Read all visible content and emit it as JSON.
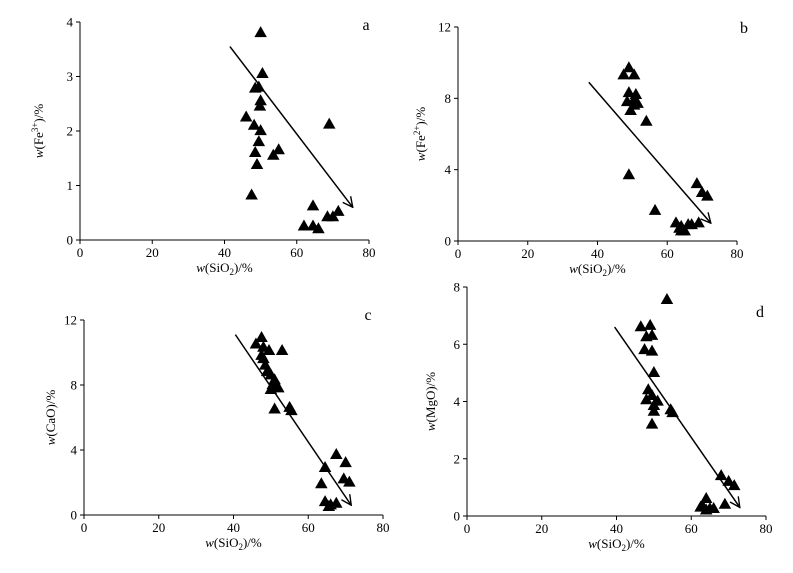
{
  "chart_data": [
    {
      "type": "scatter",
      "panel_label": "a",
      "xlabel": {
        "prefix": "w(SiO",
        "sub": "2",
        "suffix": ")/%"
      },
      "ylabel": {
        "prefix": "w(Fe",
        "sup": "3+",
        "suffix": ")/%"
      },
      "xlim": [
        0,
        80
      ],
      "ylim": [
        0,
        4
      ],
      "xticks": [
        0,
        20,
        40,
        60,
        80
      ],
      "yticks": [
        0,
        1,
        2,
        3,
        4
      ],
      "grid": false,
      "trend_arrow": {
        "from": [
          41.5,
          3.55
        ],
        "to": [
          75.5,
          0.6
        ]
      },
      "points": [
        [
          50,
          3.8
        ],
        [
          50.5,
          3.05
        ],
        [
          48.5,
          2.78
        ],
        [
          49.5,
          2.8
        ],
        [
          50,
          2.55
        ],
        [
          49.8,
          2.45
        ],
        [
          46,
          2.25
        ],
        [
          48.2,
          2.1
        ],
        [
          50,
          2.0
        ],
        [
          49.5,
          1.8
        ],
        [
          48.5,
          1.6
        ],
        [
          53.5,
          1.55
        ],
        [
          55,
          1.65
        ],
        [
          49,
          1.38
        ],
        [
          47.5,
          0.82
        ],
        [
          69,
          2.12
        ],
        [
          64.5,
          0.62
        ],
        [
          62,
          0.25
        ],
        [
          64.5,
          0.25
        ],
        [
          66,
          0.2
        ],
        [
          68.5,
          0.42
        ],
        [
          70,
          0.42
        ],
        [
          71.5,
          0.52
        ]
      ]
    },
    {
      "type": "scatter",
      "panel_label": "b",
      "xlabel": {
        "prefix": "w(SiO",
        "sub": "2",
        "suffix": ")/%"
      },
      "ylabel": {
        "prefix": "w(Fe",
        "sup": "2+",
        "suffix": ")/%"
      },
      "xlim": [
        0,
        80
      ],
      "ylim": [
        0,
        12
      ],
      "xticks": [
        0,
        20,
        40,
        60,
        80
      ],
      "yticks": [
        0,
        4,
        8,
        12
      ],
      "grid": false,
      "trend_arrow": {
        "from": [
          37.5,
          8.9
        ],
        "to": [
          72.5,
          1.0
        ]
      },
      "points": [
        [
          49,
          9.7
        ],
        [
          47.5,
          9.3
        ],
        [
          50.5,
          9.3
        ],
        [
          49,
          8.3
        ],
        [
          51,
          8.2
        ],
        [
          48.5,
          7.8
        ],
        [
          50.5,
          7.9
        ],
        [
          51.5,
          7.7
        ],
        [
          49.5,
          7.3
        ],
        [
          50.5,
          7.6
        ],
        [
          54,
          6.7
        ],
        [
          49,
          3.7
        ],
        [
          56.5,
          1.7
        ],
        [
          68.5,
          3.2
        ],
        [
          70,
          2.7
        ],
        [
          71.5,
          2.5
        ],
        [
          62.5,
          1.0
        ],
        [
          64,
          0.8
        ],
        [
          66,
          0.9
        ],
        [
          65,
          0.55
        ],
        [
          64,
          0.55
        ],
        [
          67,
          0.9
        ],
        [
          69,
          1.0
        ],
        [
          63.5,
          0.7
        ]
      ]
    },
    {
      "type": "scatter",
      "panel_label": "c",
      "xlabel": {
        "prefix": "w(SiO",
        "sub": "2",
        "suffix": ")/%"
      },
      "ylabel": {
        "prefix": "w(CaO)/%",
        "sub": "",
        "suffix": ""
      },
      "xlim": [
        0,
        80
      ],
      "ylim": [
        0,
        12
      ],
      "xticks": [
        0,
        20,
        40,
        60,
        80
      ],
      "yticks": [
        0,
        4,
        8,
        12
      ],
      "grid": false,
      "trend_arrow": {
        "from": [
          40.5,
          11.1
        ],
        "to": [
          71.5,
          0.6
        ]
      },
      "points": [
        [
          47.5,
          10.9
        ],
        [
          46,
          10.5
        ],
        [
          48,
          10.3
        ],
        [
          49.5,
          10.1
        ],
        [
          47.5,
          9.8
        ],
        [
          53,
          10.1
        ],
        [
          48,
          9.6
        ],
        [
          48.5,
          9.2
        ],
        [
          49,
          8.8
        ],
        [
          50,
          8.6
        ],
        [
          51,
          8.3
        ],
        [
          50.5,
          8.0
        ],
        [
          51.5,
          7.9
        ],
        [
          50,
          7.7
        ],
        [
          52,
          7.8
        ],
        [
          51,
          6.5
        ],
        [
          55,
          6.6
        ],
        [
          55.5,
          6.4
        ],
        [
          67.5,
          3.7
        ],
        [
          64.5,
          2.9
        ],
        [
          70,
          3.2
        ],
        [
          63.5,
          1.9
        ],
        [
          69.5,
          2.2
        ],
        [
          71,
          2.0
        ],
        [
          64.5,
          0.8
        ],
        [
          66,
          0.6
        ],
        [
          67.5,
          0.7
        ],
        [
          65.5,
          0.5
        ]
      ]
    },
    {
      "type": "scatter",
      "panel_label": "d",
      "xlabel": {
        "prefix": "w(SiO",
        "sub": "2",
        "suffix": ")/%"
      },
      "ylabel": {
        "prefix": "w(MgO)/%",
        "sub": "",
        "suffix": ""
      },
      "xlim": [
        0,
        80
      ],
      "ylim": [
        0,
        8
      ],
      "xticks": [
        0,
        20,
        40,
        60,
        80
      ],
      "yticks": [
        0,
        2,
        4,
        6,
        8
      ],
      "grid": false,
      "trend_arrow": {
        "from": [
          39.5,
          6.6
        ],
        "to": [
          73,
          0.3
        ]
      },
      "points": [
        [
          53.5,
          7.55
        ],
        [
          46.5,
          6.6
        ],
        [
          49,
          6.65
        ],
        [
          48,
          6.25
        ],
        [
          49.5,
          6.3
        ],
        [
          47.5,
          5.8
        ],
        [
          49.5,
          5.75
        ],
        [
          50,
          5.0
        ],
        [
          48.5,
          4.4
        ],
        [
          49.5,
          4.2
        ],
        [
          48,
          4.05
        ],
        [
          51,
          4.0
        ],
        [
          50,
          3.85
        ],
        [
          50,
          3.65
        ],
        [
          54.5,
          3.7
        ],
        [
          55,
          3.6
        ],
        [
          49.5,
          3.2
        ],
        [
          68,
          1.4
        ],
        [
          70,
          1.2
        ],
        [
          71.5,
          1.05
        ],
        [
          64,
          0.6
        ],
        [
          63,
          0.35
        ],
        [
          62.5,
          0.3
        ],
        [
          65,
          0.25
        ],
        [
          66,
          0.25
        ],
        [
          64,
          0.2
        ],
        [
          69,
          0.4
        ]
      ]
    }
  ]
}
